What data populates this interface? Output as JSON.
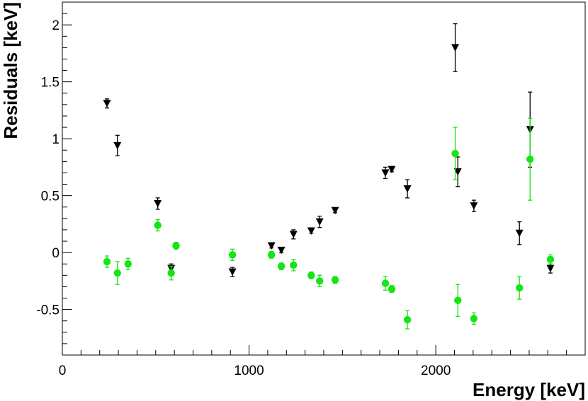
{
  "chart_data": {
    "type": "scatter",
    "title": "",
    "xlabel": "Energy [keV]",
    "ylabel": "Residuals [keV]",
    "xlim": [
      0,
      2800
    ],
    "ylim": [
      -0.9,
      2.2
    ],
    "x_ticks": [
      0,
      1000,
      2000
    ],
    "x_tick_labels": [
      "0",
      "1000",
      "2000"
    ],
    "y_ticks": [
      -0.5,
      0,
      0.5,
      1,
      1.5,
      2
    ],
    "y_tick_labels": [
      "-0.5",
      "0",
      "0.5",
      "1",
      "1.5",
      "2"
    ],
    "grid": false,
    "legend": "none",
    "series": [
      {
        "marker": "triangle-down",
        "color": "#000000",
        "points": [
          {
            "x": 239,
            "y": 1.31,
            "err": 0.04
          },
          {
            "x": 295,
            "y": 0.94,
            "err": 0.09
          },
          {
            "x": 511,
            "y": 0.43,
            "err": 0.05
          },
          {
            "x": 583,
            "y": -0.14,
            "err": 0.04
          },
          {
            "x": 911,
            "y": -0.17,
            "err": 0.04
          },
          {
            "x": 1120,
            "y": 0.06,
            "err": 0.02
          },
          {
            "x": 1173,
            "y": 0.02,
            "err": 0.02
          },
          {
            "x": 1238,
            "y": 0.16,
            "err": 0.04
          },
          {
            "x": 1333,
            "y": 0.19,
            "err": 0.02
          },
          {
            "x": 1378,
            "y": 0.27,
            "err": 0.05
          },
          {
            "x": 1461,
            "y": 0.37,
            "err": 0.02
          },
          {
            "x": 1730,
            "y": 0.7,
            "err": 0.05
          },
          {
            "x": 1764,
            "y": 0.73,
            "err": 0.02
          },
          {
            "x": 1848,
            "y": 0.56,
            "err": 0.08
          },
          {
            "x": 2104,
            "y": 1.8,
            "err": 0.21
          },
          {
            "x": 2118,
            "y": 0.71,
            "err": 0.13
          },
          {
            "x": 2204,
            "y": 0.41,
            "err": 0.05
          },
          {
            "x": 2448,
            "y": 0.17,
            "err": 0.1
          },
          {
            "x": 2505,
            "y": 1.08,
            "err": 0.33
          },
          {
            "x": 2614,
            "y": -0.14,
            "err": 0.04
          }
        ]
      },
      {
        "marker": "circle",
        "color": "#14e614",
        "points": [
          {
            "x": 239,
            "y": -0.08,
            "err": 0.05
          },
          {
            "x": 295,
            "y": -0.18,
            "err": 0.1
          },
          {
            "x": 352,
            "y": -0.1,
            "err": 0.05
          },
          {
            "x": 511,
            "y": 0.24,
            "err": 0.05
          },
          {
            "x": 583,
            "y": -0.18,
            "err": 0.06
          },
          {
            "x": 609,
            "y": 0.06,
            "err": 0.03
          },
          {
            "x": 911,
            "y": -0.02,
            "err": 0.05
          },
          {
            "x": 1120,
            "y": -0.02,
            "err": 0.03
          },
          {
            "x": 1173,
            "y": -0.12,
            "err": 0.03
          },
          {
            "x": 1238,
            "y": -0.11,
            "err": 0.05
          },
          {
            "x": 1333,
            "y": -0.2,
            "err": 0.03
          },
          {
            "x": 1378,
            "y": -0.25,
            "err": 0.05
          },
          {
            "x": 1461,
            "y": -0.24,
            "err": 0.03
          },
          {
            "x": 1730,
            "y": -0.27,
            "err": 0.06
          },
          {
            "x": 1764,
            "y": -0.32,
            "err": 0.03
          },
          {
            "x": 1848,
            "y": -0.59,
            "err": 0.08
          },
          {
            "x": 2104,
            "y": 0.87,
            "err": 0.23
          },
          {
            "x": 2118,
            "y": -0.42,
            "err": 0.14
          },
          {
            "x": 2204,
            "y": -0.58,
            "err": 0.05
          },
          {
            "x": 2448,
            "y": -0.31,
            "err": 0.1
          },
          {
            "x": 2505,
            "y": 0.82,
            "err": 0.36
          },
          {
            "x": 2614,
            "y": -0.06,
            "err": 0.04
          }
        ]
      }
    ]
  }
}
